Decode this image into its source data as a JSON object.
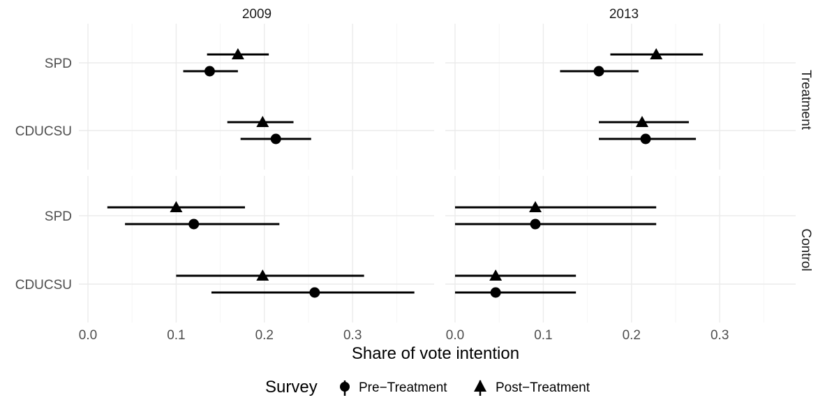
{
  "chart_data": {
    "type": "scatter",
    "xlabel": "Share of vote intention",
    "x_ticks": [
      "0.0",
      "0.1",
      "0.2",
      "0.3"
    ],
    "xlim": [
      0.0,
      0.37
    ],
    "columns": [
      "2009",
      "2013"
    ],
    "rows": [
      "Treatment",
      "Control"
    ],
    "categories": [
      "SPD",
      "CDUCSU"
    ],
    "legend": {
      "title": "Survey",
      "position": "bottom",
      "entries": [
        {
          "name": "Pre−Treatment",
          "shape": "circle"
        },
        {
          "name": "Post−Treatment",
          "shape": "triangle"
        }
      ]
    },
    "panels": [
      {
        "column": "2009",
        "row": "Treatment",
        "points": [
          {
            "party": "SPD",
            "survey": "Post−Treatment",
            "estimate": 0.17,
            "lower": 0.135,
            "upper": 0.205
          },
          {
            "party": "SPD",
            "survey": "Pre−Treatment",
            "estimate": 0.138,
            "lower": 0.108,
            "upper": 0.17
          },
          {
            "party": "CDUCSU",
            "survey": "Post−Treatment",
            "estimate": 0.198,
            "lower": 0.158,
            "upper": 0.233
          },
          {
            "party": "CDUCSU",
            "survey": "Pre−Treatment",
            "estimate": 0.213,
            "lower": 0.173,
            "upper": 0.253
          }
        ]
      },
      {
        "column": "2013",
        "row": "Treatment",
        "points": [
          {
            "party": "SPD",
            "survey": "Post−Treatment",
            "estimate": 0.228,
            "lower": 0.176,
            "upper": 0.281
          },
          {
            "party": "SPD",
            "survey": "Pre−Treatment",
            "estimate": 0.163,
            "lower": 0.119,
            "upper": 0.208
          },
          {
            "party": "CDUCSU",
            "survey": "Post−Treatment",
            "estimate": 0.212,
            "lower": 0.163,
            "upper": 0.265
          },
          {
            "party": "CDUCSU",
            "survey": "Pre−Treatment",
            "estimate": 0.216,
            "lower": 0.163,
            "upper": 0.273
          }
        ]
      },
      {
        "column": "2009",
        "row": "Control",
        "points": [
          {
            "party": "SPD",
            "survey": "Post−Treatment",
            "estimate": 0.1,
            "lower": 0.022,
            "upper": 0.178
          },
          {
            "party": "SPD",
            "survey": "Pre−Treatment",
            "estimate": 0.12,
            "lower": 0.042,
            "upper": 0.217
          },
          {
            "party": "CDUCSU",
            "survey": "Post−Treatment",
            "estimate": 0.198,
            "lower": 0.1,
            "upper": 0.313
          },
          {
            "party": "CDUCSU",
            "survey": "Pre−Treatment",
            "estimate": 0.257,
            "lower": 0.14,
            "upper": 0.37
          }
        ]
      },
      {
        "column": "2013",
        "row": "Control",
        "points": [
          {
            "party": "SPD",
            "survey": "Post−Treatment",
            "estimate": 0.091,
            "lower": 0.0,
            "upper": 0.228
          },
          {
            "party": "SPD",
            "survey": "Pre−Treatment",
            "estimate": 0.091,
            "lower": 0.0,
            "upper": 0.228
          },
          {
            "party": "CDUCSU",
            "survey": "Post−Treatment",
            "estimate": 0.046,
            "lower": 0.0,
            "upper": 0.137
          },
          {
            "party": "CDUCSU",
            "survey": "Pre−Treatment",
            "estimate": 0.046,
            "lower": 0.0,
            "upper": 0.137
          }
        ]
      }
    ],
    "grid": true
  }
}
